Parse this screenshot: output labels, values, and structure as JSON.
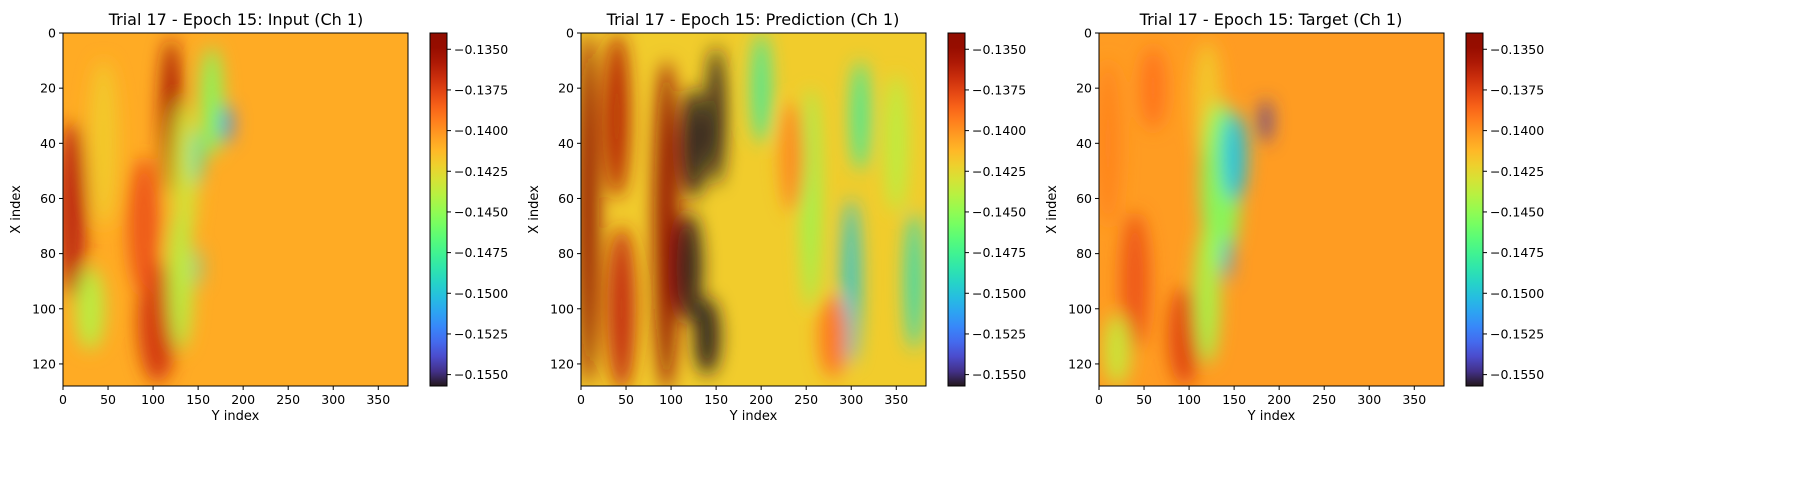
{
  "chart_data": [
    {
      "type": "heatmap",
      "title": "Trial 17 - Epoch 15: Input (Ch 1)",
      "xlabel": "Y index",
      "ylabel": "X index",
      "xlim": [
        0,
        383
      ],
      "ylim": [
        128,
        0
      ],
      "xticks": [
        "0",
        "50",
        "100",
        "150",
        "200",
        "250",
        "300",
        "350"
      ],
      "yticks": [
        "0",
        "20",
        "40",
        "60",
        "80",
        "100",
        "120"
      ],
      "colorbar": {
        "colormap": "turbo",
        "range": [
          -0.1557,
          -0.134
        ],
        "ticks": [
          "−0.1350",
          "−0.1375",
          "−0.1400",
          "−0.1425",
          "−0.1450",
          "−0.1475",
          "−0.1500",
          "−0.1525",
          "−0.1550"
        ]
      },
      "features": [
        {
          "kind": "band",
          "x": 10,
          "y": 64,
          "rx": 16,
          "ry": 32,
          "value": -0.1362
        },
        {
          "kind": "band",
          "x": 45,
          "y": 40,
          "rx": 16,
          "ry": 30,
          "value": -0.142
        },
        {
          "kind": "band",
          "x": 105,
          "y": 105,
          "rx": 22,
          "ry": 22,
          "value": -0.137
        },
        {
          "kind": "band",
          "x": 120,
          "y": 30,
          "rx": 12,
          "ry": 28,
          "value": -0.1355
        },
        {
          "kind": "band",
          "x": 90,
          "y": 70,
          "rx": 18,
          "ry": 25,
          "value": -0.138
        },
        {
          "kind": "band",
          "x": 135,
          "y": 50,
          "rx": 15,
          "ry": 25,
          "value": -0.1432
        },
        {
          "kind": "band",
          "x": 130,
          "y": 90,
          "rx": 14,
          "ry": 25,
          "value": -0.144
        },
        {
          "kind": "band",
          "x": 165,
          "y": 25,
          "rx": 12,
          "ry": 20,
          "value": -0.1455
        },
        {
          "kind": "band",
          "x": 30,
          "y": 100,
          "rx": 16,
          "ry": 15,
          "value": -0.144
        },
        {
          "kind": "spot",
          "x": 182,
          "y": 33,
          "rx": 6,
          "ry": 7,
          "value": -0.1525
        },
        {
          "kind": "spot",
          "x": 148,
          "y": 45,
          "rx": 6,
          "ry": 10,
          "value": -0.1485
        },
        {
          "kind": "spot",
          "x": 150,
          "y": 85,
          "rx": 3,
          "ry": 7,
          "value": -0.149
        }
      ],
      "background": -0.1408
    },
    {
      "type": "heatmap",
      "title": "Trial 17 - Epoch 15: Prediction (Ch 1)",
      "xlabel": "Y index",
      "ylabel": "X index",
      "xlim": [
        0,
        383
      ],
      "ylim": [
        128,
        0
      ],
      "xticks": [
        "0",
        "50",
        "100",
        "150",
        "200",
        "250",
        "300",
        "350"
      ],
      "yticks": [
        "0",
        "20",
        "40",
        "60",
        "80",
        "100",
        "120"
      ],
      "colorbar": {
        "colormap": "turbo",
        "range": [
          -0.1557,
          -0.134
        ],
        "ticks": [
          "−0.1350",
          "−0.1375",
          "−0.1400",
          "−0.1425",
          "−0.1450",
          "−0.1475",
          "−0.1500",
          "−0.1525",
          "−0.1550"
        ]
      },
      "features": [
        {
          "kind": "band",
          "x": 8,
          "y": 64,
          "rx": 12,
          "ry": 64,
          "value": -0.134
        },
        {
          "kind": "band",
          "x": 40,
          "y": 30,
          "rx": 14,
          "ry": 30,
          "value": -0.136
        },
        {
          "kind": "band",
          "x": 45,
          "y": 100,
          "rx": 16,
          "ry": 30,
          "value": -0.1365
        },
        {
          "kind": "band",
          "x": 95,
          "y": 70,
          "rx": 14,
          "ry": 60,
          "value": -0.1345
        },
        {
          "kind": "band",
          "x": 125,
          "y": 40,
          "rx": 14,
          "ry": 20,
          "value": -0.1557
        },
        {
          "kind": "band",
          "x": 120,
          "y": 85,
          "rx": 14,
          "ry": 20,
          "value": -0.1557
        },
        {
          "kind": "band",
          "x": 150,
          "y": 30,
          "rx": 10,
          "ry": 25,
          "value": -0.1557
        },
        {
          "kind": "band",
          "x": 140,
          "y": 110,
          "rx": 14,
          "ry": 14,
          "value": -0.1557
        },
        {
          "kind": "band",
          "x": 200,
          "y": 20,
          "rx": 10,
          "ry": 20,
          "value": -0.148
        },
        {
          "kind": "band",
          "x": 255,
          "y": 60,
          "rx": 10,
          "ry": 40,
          "value": -0.145
        },
        {
          "kind": "band",
          "x": 300,
          "y": 90,
          "rx": 10,
          "ry": 30,
          "value": -0.15
        },
        {
          "kind": "band",
          "x": 310,
          "y": 30,
          "rx": 10,
          "ry": 20,
          "value": -0.148
        },
        {
          "kind": "band",
          "x": 235,
          "y": 45,
          "rx": 14,
          "ry": 20,
          "value": -0.1395
        },
        {
          "kind": "band",
          "x": 280,
          "y": 110,
          "rx": 16,
          "ry": 15,
          "value": -0.139
        },
        {
          "kind": "band",
          "x": 350,
          "y": 40,
          "rx": 12,
          "ry": 25,
          "value": -0.144
        },
        {
          "kind": "band",
          "x": 370,
          "y": 90,
          "rx": 10,
          "ry": 25,
          "value": -0.149
        }
      ],
      "background": -0.142
    },
    {
      "type": "heatmap",
      "title": "Trial 17 - Epoch 15: Target (Ch 1)",
      "xlabel": "Y index",
      "ylabel": "X index",
      "xlim": [
        0,
        383
      ],
      "ylim": [
        128,
        0
      ],
      "xticks": [
        "0",
        "50",
        "100",
        "150",
        "200",
        "250",
        "300",
        "350"
      ],
      "yticks": [
        "0",
        "20",
        "40",
        "60",
        "80",
        "100",
        "120"
      ],
      "colorbar": {
        "colormap": "turbo",
        "range": [
          -0.1557,
          -0.134
        ],
        "ticks": [
          "−0.1350",
          "−0.1375",
          "−0.1400",
          "−0.1425",
          "−0.1450",
          "−0.1475",
          "−0.1500",
          "−0.1525",
          "−0.1550"
        ]
      },
      "features": [
        {
          "kind": "band",
          "x": 10,
          "y": 40,
          "rx": 14,
          "ry": 30,
          "value": -0.1395
        },
        {
          "kind": "band",
          "x": 40,
          "y": 90,
          "rx": 16,
          "ry": 25,
          "value": -0.138
        },
        {
          "kind": "band",
          "x": 60,
          "y": 20,
          "rx": 14,
          "ry": 15,
          "value": -0.139
        },
        {
          "kind": "band",
          "x": 95,
          "y": 110,
          "rx": 18,
          "ry": 18,
          "value": -0.1375
        },
        {
          "kind": "band",
          "x": 120,
          "y": 25,
          "rx": 15,
          "ry": 22,
          "value": -0.142
        },
        {
          "kind": "band",
          "x": 135,
          "y": 55,
          "rx": 22,
          "ry": 30,
          "value": -0.1455
        },
        {
          "kind": "band",
          "x": 120,
          "y": 95,
          "rx": 14,
          "ry": 25,
          "value": -0.1445
        },
        {
          "kind": "band",
          "x": 20,
          "y": 115,
          "rx": 15,
          "ry": 13,
          "value": -0.1435
        },
        {
          "kind": "spot",
          "x": 150,
          "y": 45,
          "rx": 14,
          "ry": 16,
          "value": -0.15
        },
        {
          "kind": "spot",
          "x": 143,
          "y": 82,
          "rx": 4,
          "ry": 8,
          "value": -0.152
        },
        {
          "kind": "spot",
          "x": 185,
          "y": 32,
          "rx": 6,
          "ry": 8,
          "value": -0.1545
        }
      ],
      "background": -0.1403
    }
  ]
}
